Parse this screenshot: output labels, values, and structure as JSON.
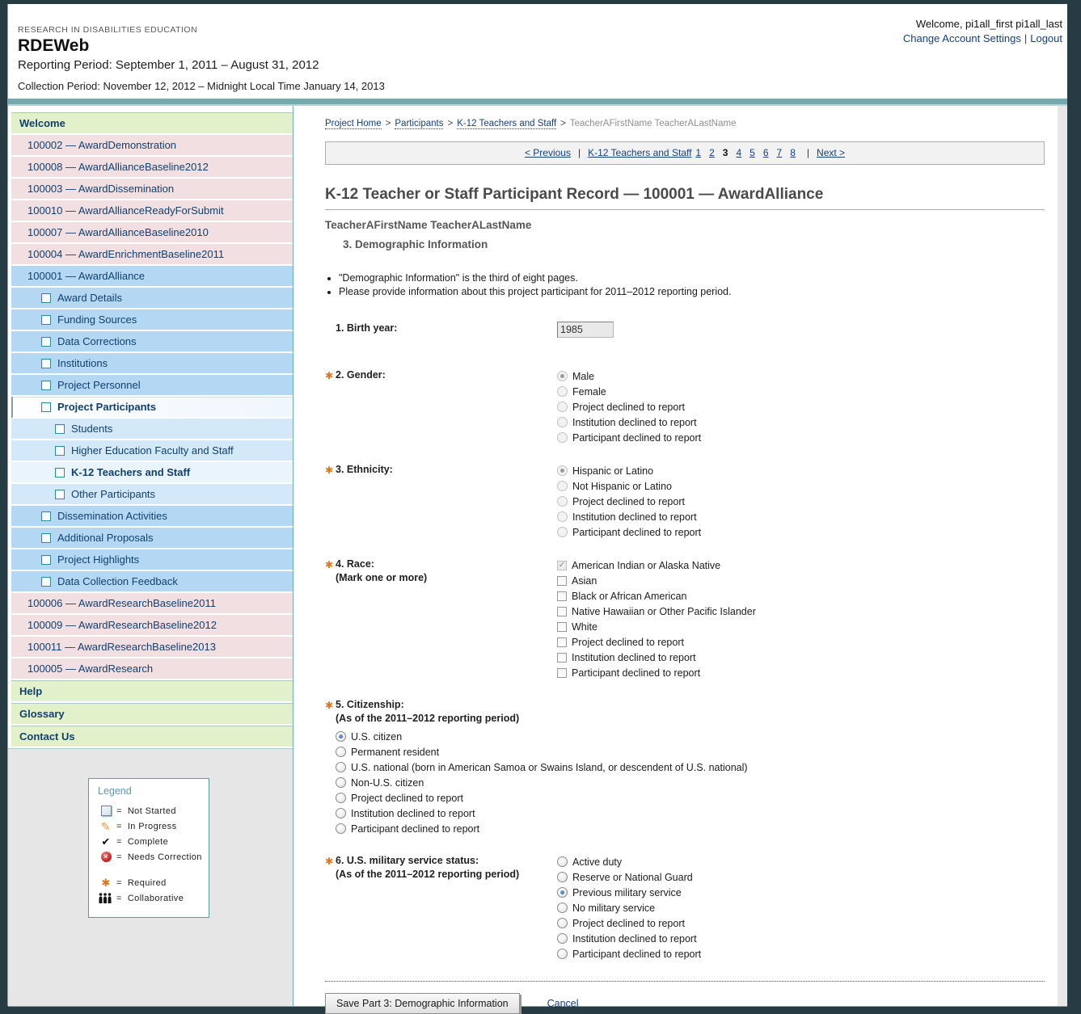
{
  "colors": {
    "accent_teal": "#74a9af",
    "link_navy": "#16407a",
    "required_orange": "#e0761a",
    "green_row": "#e3f1ca",
    "pink_row": "#f1dfe1",
    "blue_row": "#b4d8f3",
    "blue_row_light": "#d3e9fa",
    "selected_radio_blue": "#2a5ea8"
  },
  "header": {
    "org": "RESEARCH IN DISABILITIES EDUCATION",
    "app": "RDEWeb",
    "reporting_period": "Reporting Period: September 1, 2011 – August 31, 2012",
    "collection_period": "Collection Period: November 12, 2012 – Midnight Local Time January 14, 2013",
    "welcome": "Welcome, pi1all_first pi1all_last",
    "account_settings": "Change Account Settings",
    "logout": "Logout"
  },
  "sidebar": {
    "items": [
      {
        "label": "Welcome",
        "style": "green"
      },
      {
        "label": "100002 — AwardDemonstration",
        "style": "pink"
      },
      {
        "label": "100008 — AwardAllianceBaseline2012",
        "style": "pink"
      },
      {
        "label": "100003 — AwardDissemination",
        "style": "pink"
      },
      {
        "label": "100010 — AwardAllianceReadyForSubmit",
        "style": "pink"
      },
      {
        "label": "100007 — AwardAllianceBaseline2010",
        "style": "pink"
      },
      {
        "label": "100004 — AwardEnrichmentBaseline2011",
        "style": "pink"
      },
      {
        "label": "100001 — AwardAlliance",
        "style": "blue",
        "level": 0
      },
      {
        "label": "Award Details",
        "style": "blue",
        "level": 1,
        "icon": true
      },
      {
        "label": "Funding Sources",
        "style": "blue",
        "level": 1,
        "icon": true
      },
      {
        "label": "Data Corrections",
        "style": "blue",
        "level": 1,
        "icon": true
      },
      {
        "label": "Institutions",
        "style": "blue",
        "level": 1,
        "icon": true
      },
      {
        "label": "Project Personnel",
        "style": "blue",
        "level": 1,
        "icon": true
      },
      {
        "label": "Project Participants",
        "style": "blue",
        "level": 1,
        "icon": true,
        "bold": true,
        "selected": "participants"
      },
      {
        "label": "Students",
        "style": "blue",
        "level": 2,
        "icon": true
      },
      {
        "label": "Higher Education Faculty and Staff",
        "style": "blue",
        "level": 2,
        "icon": true
      },
      {
        "label": "K-12 Teachers and Staff",
        "style": "blue",
        "level": 2,
        "icon": true,
        "bold": true,
        "selected": "k12"
      },
      {
        "label": "Other Participants",
        "style": "blue",
        "level": 2,
        "icon": true
      },
      {
        "label": "Dissemination Activities",
        "style": "blue",
        "level": 1,
        "icon": true
      },
      {
        "label": "Additional Proposals",
        "style": "blue",
        "level": 1,
        "icon": true
      },
      {
        "label": "Project Highlights",
        "style": "blue",
        "level": 1,
        "icon": true
      },
      {
        "label": "Data Collection Feedback",
        "style": "blue",
        "level": 1,
        "icon": true
      },
      {
        "label": "100006 — AwardResearchBaseline2011",
        "style": "pink"
      },
      {
        "label": "100009 — AwardResearchBaseline2012",
        "style": "pink"
      },
      {
        "label": "100011 — AwardResearchBaseline2013",
        "style": "pink"
      },
      {
        "label": "100005 — AwardResearch",
        "style": "pink"
      },
      {
        "label": "Help",
        "style": "green"
      },
      {
        "label": "Glossary",
        "style": "green"
      },
      {
        "label": "Contact Us",
        "style": "green"
      }
    ],
    "legend": {
      "title": "Legend",
      "groups": [
        [
          {
            "icon": "not-started-icon",
            "label": "Not Started"
          },
          {
            "icon": "in-progress-icon",
            "label": "In Progress"
          },
          {
            "icon": "complete-icon",
            "label": "Complete"
          },
          {
            "icon": "needs-correction-icon",
            "label": "Needs Correction"
          }
        ],
        [
          {
            "icon": "required-icon",
            "label": "Required"
          },
          {
            "icon": "collaborative-icon",
            "label": "Collaborative"
          }
        ]
      ]
    }
  },
  "breadcrumb": {
    "links": [
      "Project Home",
      "Participants",
      "K-12 Teachers and Staff"
    ],
    "current": "TeacherAFirstName TeacherALastName"
  },
  "pagination": {
    "previous": "< Previous",
    "section": "K-12 Teachers and Staff",
    "pages": [
      "1",
      "2",
      "3",
      "4",
      "5",
      "6",
      "7",
      "8"
    ],
    "current": "3",
    "next": "Next >"
  },
  "main": {
    "title": "K-12 Teacher or Staff Participant Record — 100001 — AwardAlliance",
    "participant": "TeacherAFirstName TeacherALastName",
    "section": "3. Demographic Information",
    "bullets": [
      "\"Demographic Information\" is the third of eight pages.",
      "Please provide information about this project participant for 2011–2012 reporting period."
    ],
    "questions": [
      {
        "number": "1.",
        "label": "Birth year:",
        "required": false,
        "layout": "side",
        "control": {
          "type": "text",
          "value": "1985",
          "disabled": true
        }
      },
      {
        "number": "2.",
        "label": "Gender:",
        "required": true,
        "layout": "side",
        "control": {
          "type": "radio",
          "disabled": true,
          "selected": 0,
          "options": [
            "Male",
            "Female",
            "Project declined to report",
            "Institution declined to report",
            "Participant declined to report"
          ]
        }
      },
      {
        "number": "3.",
        "label": "Ethnicity:",
        "required": true,
        "layout": "side",
        "control": {
          "type": "radio",
          "disabled": true,
          "selected": 0,
          "options": [
            "Hispanic or Latino",
            "Not Hispanic or Latino",
            "Project declined to report",
            "Institution declined to report",
            "Participant declined to report"
          ]
        }
      },
      {
        "number": "4.",
        "label": "Race:",
        "sublabel": "(Mark one or more)",
        "required": true,
        "layout": "side",
        "control": {
          "type": "checkbox",
          "checked": [
            0
          ],
          "disabled_indices": [
            0
          ],
          "options": [
            "American Indian or Alaska Native",
            "Asian",
            "Black or African American",
            "Native Hawaiian or Other Pacific Islander",
            "White",
            "Project declined to report",
            "Institution declined to report",
            "Participant declined to report"
          ]
        }
      },
      {
        "number": "5.",
        "label": "Citizenship:",
        "sublabel": "(As of the 2011–2012 reporting period)",
        "required": true,
        "layout": "stack",
        "control": {
          "type": "radio",
          "disabled": false,
          "selected": 0,
          "options": [
            "U.S. citizen",
            "Permanent resident",
            "U.S. national (born in American Samoa or Swains Island, or descendent of U.S. national)",
            "Non-U.S. citizen",
            "Project declined to report",
            "Institution declined to report",
            "Participant declined to report"
          ]
        }
      },
      {
        "number": "6.",
        "label": "U.S. military service status:",
        "sublabel": "(As of the 2011–2012 reporting period)",
        "required": true,
        "layout": "side",
        "control": {
          "type": "radio",
          "disabled": false,
          "selected": 2,
          "options": [
            "Active duty",
            "Reserve or National Guard",
            "Previous military service",
            "No military service",
            "Project declined to report",
            "Institution declined to report",
            "Participant declined to report"
          ]
        }
      }
    ],
    "save_button": "Save Part 3: Demographic Information",
    "cancel": "Cancel"
  }
}
